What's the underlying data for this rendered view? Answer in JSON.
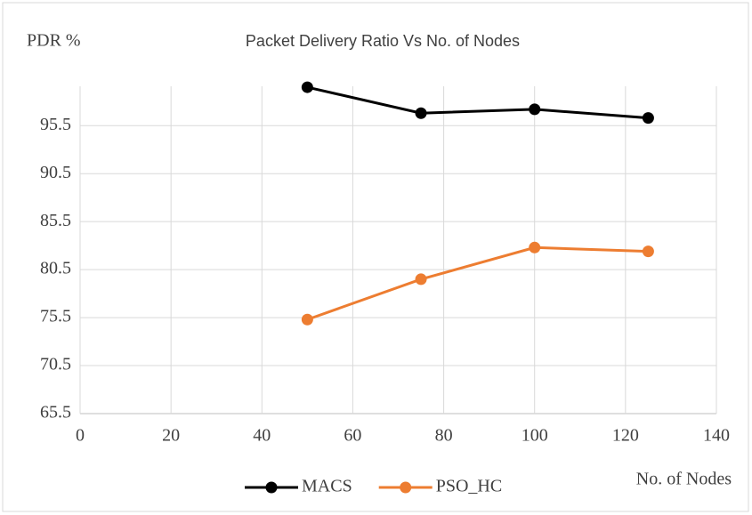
{
  "chart_data": {
    "type": "line",
    "title": "Packet Delivery Ratio Vs No. of Nodes",
    "y_label": "PDR %",
    "x_label": "No. of Nodes",
    "x": [
      50,
      75,
      100,
      125
    ],
    "series": [
      {
        "name": "MACS",
        "color": "#000000",
        "values": [
          99.5,
          96.8,
          97.2,
          96.3
        ]
      },
      {
        "name": "PSO_HC",
        "color": "#ed7d31",
        "values": [
          75.3,
          79.5,
          82.8,
          82.4
        ]
      }
    ],
    "xlim": [
      0,
      140
    ],
    "xticks": [
      0,
      20,
      40,
      60,
      80,
      100,
      120,
      140
    ],
    "ylim": [
      65.5,
      99.6
    ],
    "yticks": [
      65.5,
      70.5,
      75.5,
      80.5,
      85.5,
      90.5,
      95.5
    ],
    "grid": true,
    "legend": "bottom"
  }
}
